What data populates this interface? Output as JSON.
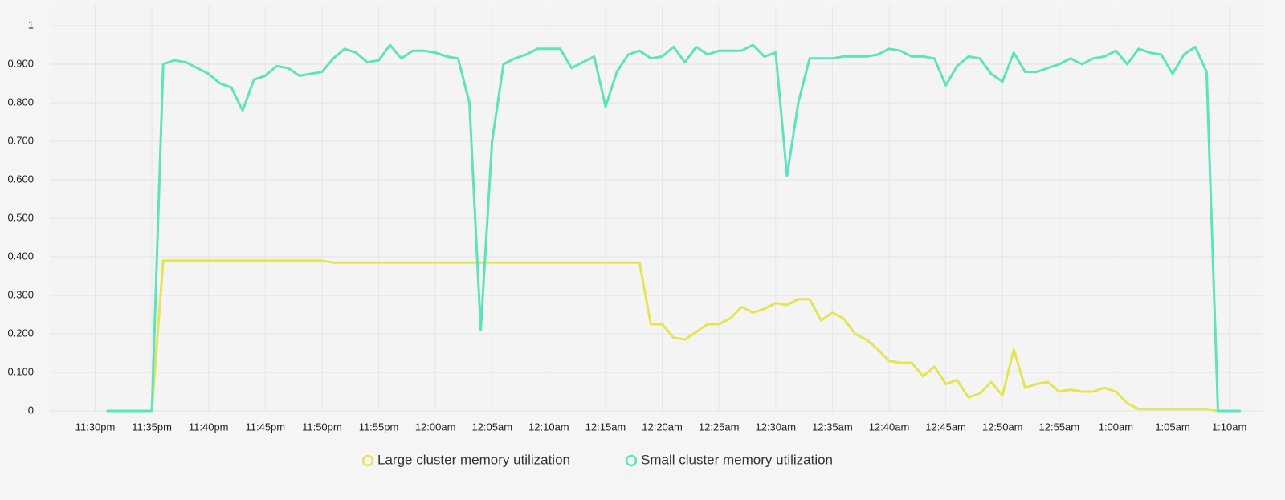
{
  "chart_data": {
    "type": "line",
    "x": [
      "11:31pm",
      "11:32pm",
      "11:33pm",
      "11:34pm",
      "11:35pm",
      "11:36pm",
      "11:37pm",
      "11:38pm",
      "11:39pm",
      "11:40pm",
      "11:41pm",
      "11:42pm",
      "11:43pm",
      "11:44pm",
      "11:45pm",
      "11:46pm",
      "11:47pm",
      "11:48pm",
      "11:49pm",
      "11:50pm",
      "11:51pm",
      "11:52pm",
      "11:53pm",
      "11:54pm",
      "11:55pm",
      "11:56pm",
      "11:57pm",
      "11:58pm",
      "11:59pm",
      "12:00am",
      "12:01am",
      "12:02am",
      "12:03am",
      "12:04am",
      "12:05am",
      "12:06am",
      "12:07am",
      "12:08am",
      "12:09am",
      "12:10am",
      "12:11am",
      "12:12am",
      "12:13am",
      "12:14am",
      "12:15am",
      "12:16am",
      "12:17am",
      "12:18am",
      "12:19am",
      "12:20am",
      "12:21am",
      "12:22am",
      "12:23am",
      "12:24am",
      "12:25am",
      "12:26am",
      "12:27am",
      "12:28am",
      "12:29am",
      "12:30am",
      "12:31am",
      "12:32am",
      "12:33am",
      "12:34am",
      "12:35am",
      "12:36am",
      "12:37am",
      "12:38am",
      "12:39am",
      "12:40am",
      "12:41am",
      "12:42am",
      "12:43am",
      "12:44am",
      "12:45am",
      "12:46am",
      "12:47am",
      "12:48am",
      "12:49am",
      "12:50am",
      "12:51am",
      "12:52am",
      "12:53am",
      "12:54am",
      "12:55am",
      "12:56am",
      "12:57am",
      "12:58am",
      "12:59am",
      "1:00am",
      "1:01am",
      "1:02am",
      "1:03am",
      "1:04am",
      "1:05am",
      "1:06am",
      "1:07am",
      "1:08am",
      "1:09am",
      "1:10am",
      "1:11am"
    ],
    "series": [
      {
        "name": "Large cluster memory utilization",
        "color": "#e4e455",
        "values": [
          0,
          0,
          0,
          0,
          0,
          0.39,
          0.39,
          0.39,
          0.39,
          0.39,
          0.39,
          0.39,
          0.39,
          0.39,
          0.39,
          0.39,
          0.39,
          0.39,
          0.39,
          0.39,
          0.385,
          0.385,
          0.385,
          0.385,
          0.385,
          0.385,
          0.385,
          0.385,
          0.385,
          0.385,
          0.385,
          0.385,
          0.385,
          0.385,
          0.385,
          0.385,
          0.385,
          0.385,
          0.385,
          0.385,
          0.385,
          0.385,
          0.385,
          0.385,
          0.385,
          0.385,
          0.385,
          0.385,
          0.225,
          0.225,
          0.19,
          0.185,
          0.205,
          0.225,
          0.225,
          0.24,
          0.27,
          0.255,
          0.265,
          0.28,
          0.275,
          0.29,
          0.29,
          0.235,
          0.255,
          0.24,
          0.2,
          0.185,
          0.16,
          0.13,
          0.125,
          0.125,
          0.09,
          0.115,
          0.07,
          0.08,
          0.035,
          0.045,
          0.075,
          0.04,
          0.16,
          0.06,
          0.07,
          0.075,
          0.05,
          0.055,
          0.05,
          0.05,
          0.06,
          0.05,
          0.02,
          0.005,
          0.005,
          0.005,
          0.005,
          0.005,
          0.005,
          0.005,
          0,
          0,
          0
        ]
      },
      {
        "name": "Small cluster memory utilization",
        "color": "#5de3bd",
        "values": [
          0,
          0,
          0,
          0,
          0,
          0.9,
          0.91,
          0.905,
          0.89,
          0.875,
          0.85,
          0.84,
          0.78,
          0.86,
          0.87,
          0.895,
          0.89,
          0.87,
          0.875,
          0.88,
          0.915,
          0.94,
          0.93,
          0.905,
          0.91,
          0.95,
          0.915,
          0.935,
          0.935,
          0.93,
          0.92,
          0.915,
          0.8,
          0.21,
          0.7,
          0.9,
          0.915,
          0.925,
          0.94,
          0.94,
          0.94,
          0.89,
          0.905,
          0.92,
          0.79,
          0.88,
          0.925,
          0.935,
          0.915,
          0.92,
          0.945,
          0.905,
          0.945,
          0.925,
          0.935,
          0.935,
          0.935,
          0.95,
          0.92,
          0.93,
          0.61,
          0.8,
          0.915,
          0.915,
          0.915,
          0.92,
          0.92,
          0.92,
          0.925,
          0.94,
          0.935,
          0.92,
          0.92,
          0.915,
          0.845,
          0.895,
          0.92,
          0.915,
          0.875,
          0.855,
          0.93,
          0.88,
          0.88,
          0.89,
          0.9,
          0.915,
          0.9,
          0.915,
          0.92,
          0.935,
          0.9,
          0.94,
          0.93,
          0.925,
          0.875,
          0.925,
          0.945,
          0.88,
          0,
          0,
          0
        ]
      }
    ],
    "xlim": [
      "11:26pm",
      "1:13am"
    ],
    "xticks": [
      "11:30pm",
      "11:35pm",
      "11:40pm",
      "11:45pm",
      "11:50pm",
      "11:55pm",
      "12:00am",
      "12:05am",
      "12:10am",
      "12:15am",
      "12:20am",
      "12:25am",
      "12:30am",
      "12:35am",
      "12:40am",
      "12:45am",
      "12:50am",
      "12:55am",
      "1:00am",
      "1:05am",
      "1:10am"
    ],
    "ylim": [
      0,
      1
    ],
    "yticks": [
      0,
      {
        "value": 0.1,
        "label": "0.100"
      },
      {
        "value": 0.2,
        "label": "0.200"
      },
      {
        "value": 0.3,
        "label": "0.300"
      },
      {
        "value": 0.4,
        "label": "0.400"
      },
      {
        "value": 0.5,
        "label": "0.500"
      },
      {
        "value": 0.6,
        "label": "0.600"
      },
      {
        "value": 0.7,
        "label": "0.700"
      },
      {
        "value": 0.8,
        "label": "0.800"
      },
      {
        "value": 0.9,
        "label": "0.900"
      },
      1
    ],
    "grid": true,
    "legend": "bottom"
  }
}
